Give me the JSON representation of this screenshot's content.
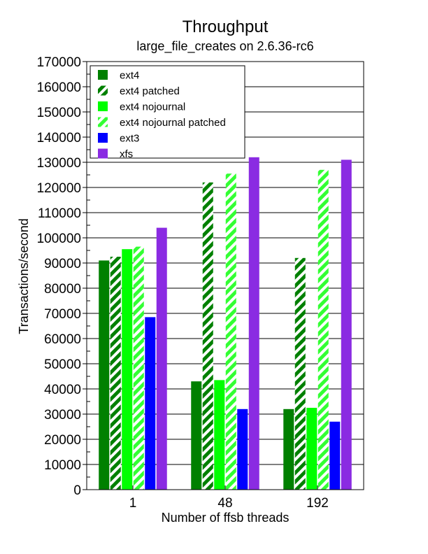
{
  "chart_data": {
    "type": "bar",
    "title": "Throughput",
    "subtitle": "large_file_creates on 2.6.36-rc6",
    "xlabel": "Number of ffsb threads",
    "ylabel": "Transactions/second",
    "ylim": [
      0,
      170000
    ],
    "yticks": [
      0,
      10000,
      20000,
      30000,
      40000,
      50000,
      60000,
      70000,
      80000,
      90000,
      100000,
      110000,
      120000,
      130000,
      140000,
      150000,
      160000,
      170000
    ],
    "grid": "horizontal",
    "legend_position": "top-left",
    "categories": [
      "1",
      "48",
      "192"
    ],
    "series": [
      {
        "name": "ext4",
        "color": "#008000",
        "pattern": "solid",
        "values": [
          91000,
          43000,
          32000
        ]
      },
      {
        "name": "ext4 patched",
        "color": "#008000",
        "pattern": "hatched",
        "values": [
          92500,
          122000,
          92000
        ]
      },
      {
        "name": "ext4 nojournal",
        "color": "#00ff00",
        "pattern": "solid",
        "values": [
          95500,
          43500,
          32500
        ]
      },
      {
        "name": "ext4 nojournal patched",
        "color": "#33ff33",
        "pattern": "hatched",
        "values": [
          96500,
          125500,
          127000
        ]
      },
      {
        "name": "ext3",
        "color": "#0000ff",
        "pattern": "solid",
        "values": [
          68500,
          32000,
          27000
        ]
      },
      {
        "name": "xfs",
        "color": "#8a2be2",
        "pattern": "solid",
        "values": [
          104000,
          132000,
          131000
        ]
      }
    ]
  }
}
